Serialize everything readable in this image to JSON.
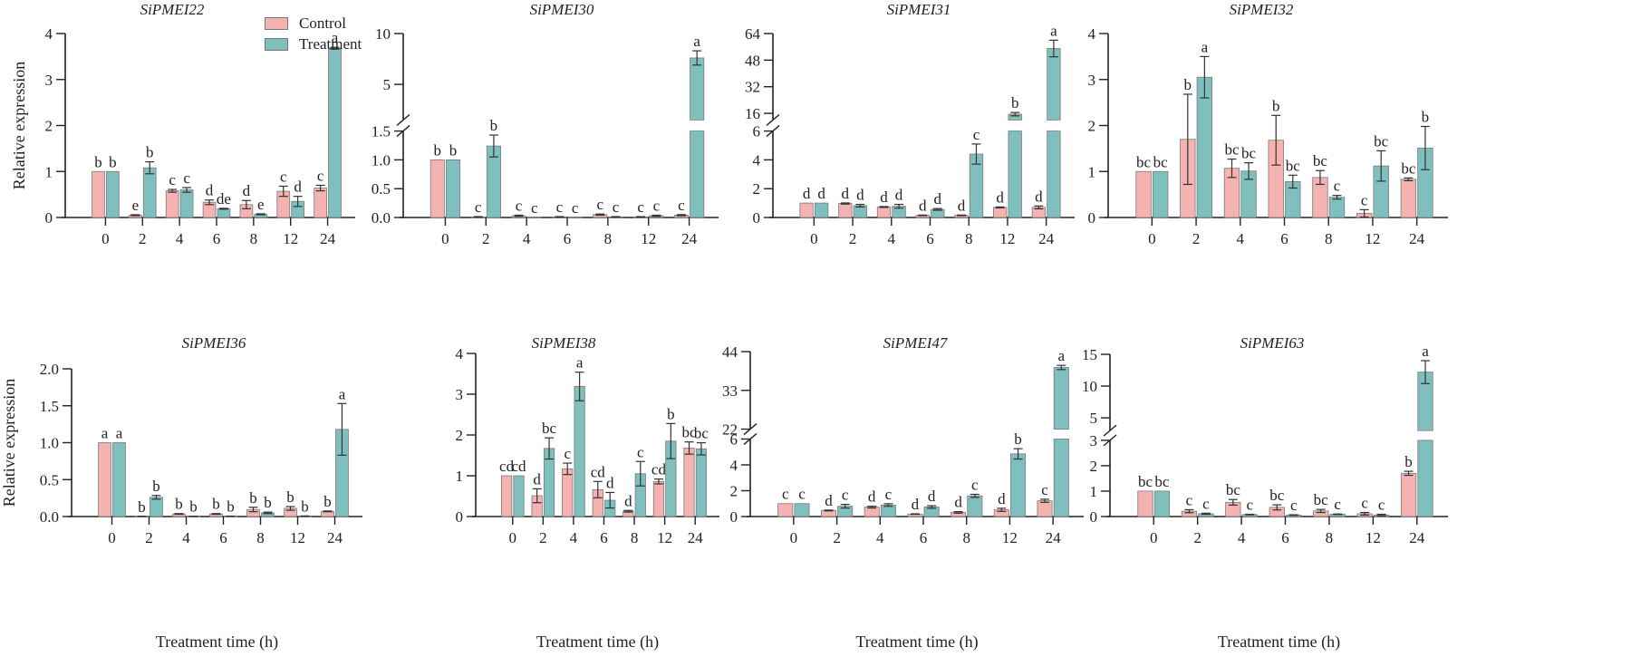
{
  "colors": {
    "control": "#f4b2b0",
    "treatment": "#7fbfbe",
    "axis": "#222222",
    "bar_edge": "#7a7a7a"
  },
  "legend": {
    "items": [
      {
        "label": "Control",
        "key": "control"
      },
      {
        "label": "Treatment",
        "key": "treatment"
      }
    ]
  },
  "chart_data": [
    {
      "type": "bar",
      "title": "SiPMEI22",
      "xlabel": "",
      "ylabel": "Relative expression",
      "categories": [
        "0",
        "2",
        "4",
        "6",
        "8",
        "12",
        "24"
      ],
      "ylim": [
        0,
        4
      ],
      "yticks": [
        0,
        1,
        2,
        3,
        4
      ],
      "ytick_labels": [
        "0",
        "1",
        "2",
        "3",
        "4"
      ],
      "axis_break": null,
      "series": [
        {
          "name": "Control",
          "values": [
            1.0,
            0.05,
            0.58,
            0.33,
            0.28,
            0.57,
            0.64
          ],
          "errors": [
            0,
            0.01,
            0.03,
            0.05,
            0.09,
            0.11,
            0.06
          ],
          "letters": [
            "b",
            "e",
            "c",
            "d",
            "d",
            "c",
            "c"
          ]
        },
        {
          "name": "Treatment",
          "values": [
            1.0,
            1.08,
            0.6,
            0.19,
            0.07,
            0.35,
            3.68
          ],
          "errors": [
            0,
            0.13,
            0.05,
            0.01,
            0.01,
            0.11,
            0.02
          ],
          "letters": [
            "b",
            "b",
            "c",
            "de",
            "e",
            "d",
            "a"
          ]
        }
      ]
    },
    {
      "type": "bar",
      "title": "SiPMEI30",
      "xlabel": "",
      "ylabel": "",
      "categories": [
        "0",
        "2",
        "4",
        "6",
        "8",
        "12",
        "24"
      ],
      "ylim": [
        0,
        10
      ],
      "yticks": [
        0,
        0.5,
        1.0,
        1.5,
        5,
        10
      ],
      "ytick_labels": [
        "0.0",
        "0.5",
        "1.0",
        "1.5",
        "5",
        "10"
      ],
      "axis_break": {
        "lower": [
          0,
          1.5
        ],
        "upper": [
          1.5,
          10
        ]
      },
      "series": [
        {
          "name": "Control",
          "values": [
            1.0,
            0.01,
            0.03,
            0.01,
            0.05,
            0.01,
            0.04
          ],
          "errors": [
            0,
            0.005,
            0.01,
            0.005,
            0.01,
            0.005,
            0.01
          ],
          "letters": [
            "b",
            "c",
            "c",
            "c",
            "c",
            "c",
            "c"
          ]
        },
        {
          "name": "Treatment",
          "values": [
            1.0,
            1.24,
            0.0,
            0.0,
            0.01,
            0.03,
            7.6
          ],
          "errors": [
            0,
            0.19,
            0,
            0,
            0.005,
            0.01,
            0.7
          ],
          "letters": [
            "b",
            "b",
            "c",
            "c",
            "c",
            "c",
            "a"
          ]
        }
      ]
    },
    {
      "type": "bar",
      "title": "SiPMEI31",
      "xlabel": "",
      "ylabel": "",
      "categories": [
        "0",
        "2",
        "4",
        "6",
        "8",
        "12",
        "24"
      ],
      "ylim": [
        0,
        64
      ],
      "yticks": [
        0,
        2,
        4,
        6,
        16,
        32,
        48,
        64
      ],
      "ytick_labels": [
        "0",
        "2",
        "4",
        "6",
        "16",
        "32",
        "48",
        "64"
      ],
      "axis_break": {
        "lower": [
          0,
          6
        ],
        "upper": [
          12,
          64
        ]
      },
      "series": [
        {
          "name": "Control",
          "values": [
            1.0,
            0.97,
            0.73,
            0.15,
            0.15,
            0.7,
            0.7
          ],
          "errors": [
            0,
            0.04,
            0.03,
            0.02,
            0.02,
            0.03,
            0.1
          ],
          "letters": [
            "d",
            "d",
            "d",
            "d",
            "d",
            "d",
            "d"
          ]
        },
        {
          "name": "Treatment",
          "values": [
            1.0,
            0.82,
            0.78,
            0.56,
            4.4,
            15.5,
            55.0
          ],
          "errors": [
            0,
            0.09,
            0.13,
            0.06,
            0.7,
            1.0,
            5.0
          ],
          "letters": [
            "d",
            "d",
            "d",
            "d",
            "c",
            "b",
            "a"
          ]
        }
      ]
    },
    {
      "type": "bar",
      "title": "SiPMEI32",
      "xlabel": "",
      "ylabel": "",
      "categories": [
        "0",
        "2",
        "4",
        "6",
        "8",
        "12",
        "24"
      ],
      "ylim": [
        0,
        4
      ],
      "yticks": [
        0,
        1,
        2,
        3,
        4
      ],
      "ytick_labels": [
        "0",
        "1",
        "2",
        "3",
        "4"
      ],
      "axis_break": null,
      "series": [
        {
          "name": "Control",
          "values": [
            1.0,
            1.7,
            1.07,
            1.68,
            0.87,
            0.09,
            0.83
          ],
          "errors": [
            0,
            0.98,
            0.2,
            0.54,
            0.15,
            0.08,
            0.03
          ],
          "letters": [
            "bc",
            "b",
            "bc",
            "b",
            "bc",
            "c",
            "bc"
          ]
        },
        {
          "name": "Treatment",
          "values": [
            1.0,
            3.05,
            1.01,
            0.78,
            0.44,
            1.12,
            1.51
          ],
          "errors": [
            0,
            0.45,
            0.18,
            0.14,
            0.04,
            0.33,
            0.47
          ],
          "letters": [
            "bc",
            "a",
            "bc",
            "bc",
            "c",
            "bc",
            "b"
          ]
        }
      ]
    },
    {
      "type": "bar",
      "title": "SiPMEI36",
      "xlabel": "Treatment time (h)",
      "ylabel": "Relative expression",
      "categories": [
        "0",
        "2",
        "4",
        "6",
        "8",
        "12",
        "24"
      ],
      "ylim": [
        0,
        2.0
      ],
      "yticks": [
        0,
        0.5,
        1.0,
        1.5,
        2.0
      ],
      "ytick_labels": [
        "0.0",
        "0.5",
        "1.0",
        "1.5",
        "2.0"
      ],
      "axis_break": null,
      "series": [
        {
          "name": "Control",
          "values": [
            1.0,
            0.002,
            0.035,
            0.035,
            0.095,
            0.11,
            0.07
          ],
          "errors": [
            0,
            0.001,
            0.005,
            0.005,
            0.03,
            0.025,
            0.005
          ],
          "letters": [
            "a",
            "b",
            "b",
            "b",
            "b",
            "b",
            "b"
          ]
        },
        {
          "name": "Treatment",
          "values": [
            1.0,
            0.26,
            0.004,
            0.005,
            0.05,
            0.006,
            1.18
          ],
          "errors": [
            0,
            0.025,
            0.001,
            0.001,
            0.01,
            0.002,
            0.35
          ],
          "letters": [
            "a",
            "b",
            "b",
            "b",
            "b",
            "b",
            "a"
          ]
        }
      ]
    },
    {
      "type": "bar",
      "title": "SiPMEI38",
      "xlabel": "Treatment time (h)",
      "ylabel": "",
      "categories": [
        "0",
        "2",
        "4",
        "6",
        "8",
        "12",
        "24"
      ],
      "ylim": [
        0,
        4
      ],
      "yticks": [
        0,
        1,
        2,
        3,
        4
      ],
      "ytick_labels": [
        "0",
        "1",
        "2",
        "3",
        "4"
      ],
      "axis_break": null,
      "series": [
        {
          "name": "Control",
          "values": [
            1.0,
            0.51,
            1.17,
            0.66,
            0.13,
            0.86,
            1.68
          ],
          "errors": [
            0,
            0.17,
            0.14,
            0.2,
            0.02,
            0.06,
            0.15
          ],
          "letters": [
            "cd",
            "d",
            "c",
            "cd",
            "d",
            "cd",
            "bc"
          ]
        },
        {
          "name": "Treatment",
          "values": [
            1.0,
            1.67,
            3.19,
            0.4,
            1.05,
            1.85,
            1.66
          ],
          "errors": [
            0,
            0.26,
            0.35,
            0.19,
            0.3,
            0.43,
            0.15
          ],
          "letters": [
            "cd",
            "bc",
            "a",
            "d",
            "c",
            "b",
            "bc"
          ]
        }
      ]
    },
    {
      "type": "bar",
      "title": "SiPMEI47",
      "xlabel": "Treatment time (h)",
      "ylabel": "",
      "categories": [
        "0",
        "2",
        "4",
        "6",
        "8",
        "12",
        "24"
      ],
      "ylim": [
        0,
        44
      ],
      "yticks": [
        0,
        2,
        4,
        6,
        22,
        33,
        44
      ],
      "ytick_labels": [
        "0",
        "2",
        "4",
        "6",
        "22",
        "33",
        "44"
      ],
      "axis_break": {
        "lower": [
          0,
          6
        ],
        "upper": [
          22,
          44
        ]
      },
      "series": [
        {
          "name": "Control",
          "values": [
            1.0,
            0.47,
            0.73,
            0.19,
            0.32,
            0.52,
            1.22
          ],
          "errors": [
            0,
            0.03,
            0.07,
            0.02,
            0.06,
            0.12,
            0.12
          ],
          "letters": [
            "c",
            "d",
            "d",
            "d",
            "d",
            "d",
            "c"
          ]
        },
        {
          "name": "Treatment",
          "values": [
            1.0,
            0.8,
            0.89,
            0.74,
            1.6,
            4.85,
            39.5
          ],
          "errors": [
            0,
            0.14,
            0.1,
            0.1,
            0.12,
            0.4,
            0.6
          ],
          "letters": [
            "c",
            "c",
            "c",
            "d",
            "c",
            "b",
            "a"
          ]
        }
      ]
    },
    {
      "type": "bar",
      "title": "SiPMEI63",
      "xlabel": "Treatment time (h)",
      "ylabel": "",
      "categories": [
        "0",
        "2",
        "4",
        "6",
        "8",
        "12",
        "24"
      ],
      "ylim": [
        0,
        15
      ],
      "yticks": [
        0,
        1,
        2,
        3,
        5,
        10,
        15
      ],
      "ytick_labels": [
        "0",
        "1",
        "2",
        "3",
        "5",
        "10",
        "15"
      ],
      "axis_break": {
        "lower": [
          0,
          3
        ],
        "upper": [
          3,
          15
        ]
      },
      "series": [
        {
          "name": "Control",
          "values": [
            1.0,
            0.21,
            0.56,
            0.36,
            0.22,
            0.11,
            1.7
          ],
          "errors": [
            0,
            0.06,
            0.11,
            0.1,
            0.06,
            0.05,
            0.08
          ],
          "letters": [
            "bc",
            "c",
            "bc",
            "bc",
            "bc",
            "c",
            "b"
          ]
        },
        {
          "name": "Treatment",
          "values": [
            1.0,
            0.11,
            0.08,
            0.06,
            0.09,
            0.06,
            12.2
          ],
          "errors": [
            0,
            0.02,
            0.01,
            0.01,
            0.01,
            0.03,
            1.8
          ],
          "letters": [
            "bc",
            "c",
            "c",
            "c",
            "c",
            "c",
            "a"
          ]
        }
      ]
    }
  ]
}
